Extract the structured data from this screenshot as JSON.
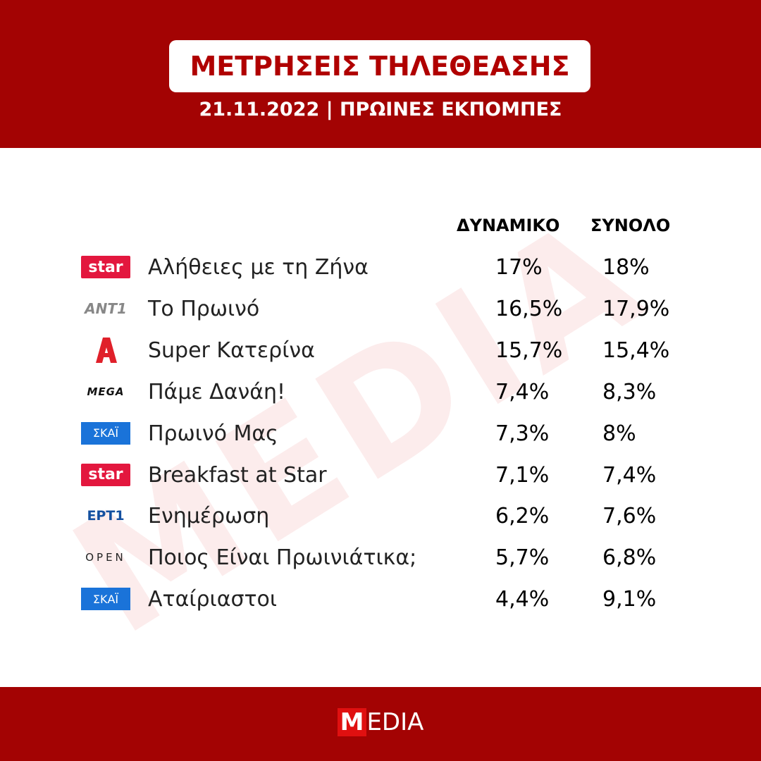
{
  "header": {
    "title": "ΜΕΤΡΗΣΕΙΣ ΤΗΛΕΘΕΑΣΗΣ",
    "subtitle": "21.11.2022 | ΠΡΩΙΝΕΣ ΕΚΠΟΜΠΕΣ"
  },
  "watermark": "MEDIA",
  "table": {
    "columns": [
      "ΔΥΝΑΜΙΚΟ",
      "ΣΥΝΟΛΟ"
    ],
    "rows": [
      {
        "logo": "star",
        "show": "Αλήθειες με τη Ζήνα",
        "values": [
          "17%",
          "18%"
        ]
      },
      {
        "logo": "ANT1",
        "show": "Το Πρωινό",
        "values": [
          "16,5%",
          "17,9%"
        ]
      },
      {
        "show": "Super Κατερίνα",
        "values": [
          "15,7%",
          "15,4%"
        ]
      },
      {
        "logo": "MEGA",
        "show": "Πάμε Δανάη!",
        "values": [
          "7,4%",
          "8,3%"
        ]
      },
      {
        "logo": "ΣΚΑΪ",
        "show": "Πρωινό Μας",
        "values": [
          "7,3%",
          "8%"
        ]
      },
      {
        "logo": "star",
        "show": "Breakfast at Star",
        "values": [
          "7,1%",
          "7,4%"
        ]
      },
      {
        "logo": "ΕΡΤ1",
        "show": "Ενημέρωση",
        "values": [
          "6,2%",
          "7,6%"
        ]
      },
      {
        "logo": "OPEN",
        "show": "Ποιος Είναι Πρωινιάτικα;",
        "values": [
          "5,7%",
          "6,8%"
        ]
      },
      {
        "logo": "ΣΚΑΪ",
        "show": "Αταίριαστοι",
        "values": [
          "4,4%",
          "9,1%"
        ]
      }
    ]
  },
  "footer": {
    "logo_initial": "M",
    "logo_rest": "EDIA"
  }
}
